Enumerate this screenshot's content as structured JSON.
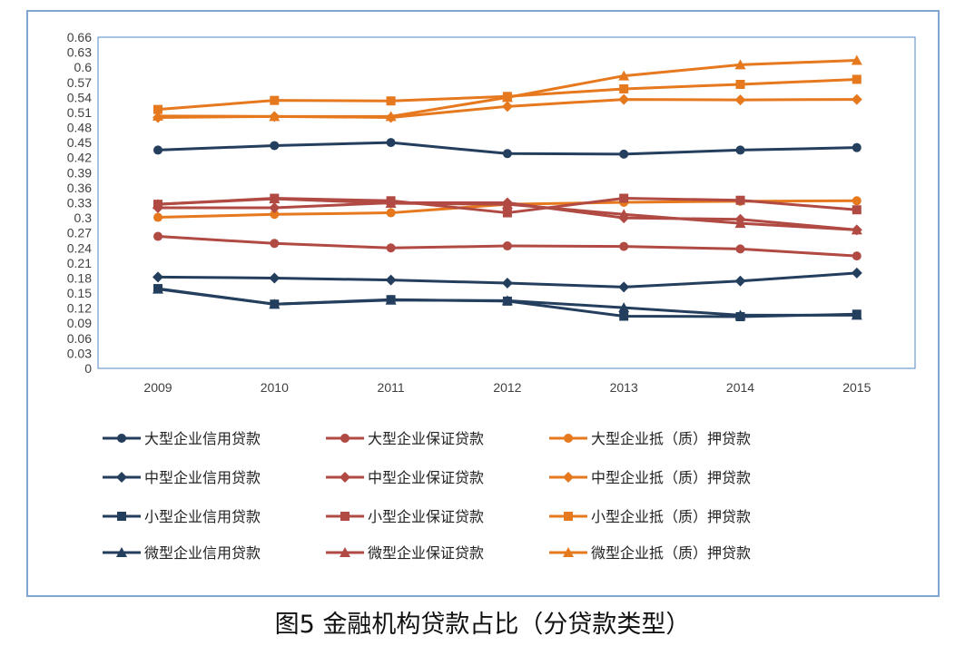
{
  "caption": "图5 金融机构贷款占比（分贷款类型）",
  "colors": {
    "dark_blue": "#243e5e",
    "red": "#b04a43",
    "orange": "#e6781e",
    "axis": "#d9d9d9",
    "plot_border": "#4f86c6"
  },
  "chart_data": {
    "type": "line",
    "title": "",
    "xlabel": "",
    "ylabel": "",
    "categories": [
      "2009",
      "2010",
      "2011",
      "2012",
      "2013",
      "2014",
      "2015"
    ],
    "ylim": [
      0,
      0.66
    ],
    "yticks": [
      "0.66",
      "0.63",
      "0.6",
      "0.57",
      "0.54",
      "0.51",
      "0.48",
      "0.45",
      "0.42",
      "0.39",
      "0.36",
      "0.33",
      "0.3",
      "0.27",
      "0.24",
      "0.21",
      "0.18",
      "0.15",
      "0.12",
      "0.09",
      "0.06",
      "0.03",
      "0"
    ],
    "grid": false,
    "legend_position": "bottom",
    "series": [
      {
        "name": "大型企业信用贷款",
        "color": "#243e5e",
        "marker": "circle",
        "values": [
          0.435,
          0.444,
          0.45,
          0.428,
          0.427,
          0.435,
          0.44
        ]
      },
      {
        "name": "大型企业保证贷款",
        "color": "#b04a43",
        "marker": "circle",
        "values": [
          0.263,
          0.249,
          0.24,
          0.244,
          0.243,
          0.238,
          0.224
        ]
      },
      {
        "name": "大型企业抵（质）押贷款",
        "color": "#e6781e",
        "marker": "circle",
        "values": [
          0.301,
          0.307,
          0.31,
          0.327,
          0.331,
          0.333,
          0.334
        ]
      },
      {
        "name": "中型企业信用贷款",
        "color": "#243e5e",
        "marker": "diamond",
        "values": [
          0.182,
          0.18,
          0.176,
          0.17,
          0.162,
          0.174,
          0.19
        ]
      },
      {
        "name": "中型企业保证贷款",
        "color": "#b04a43",
        "marker": "diamond",
        "values": [
          0.32,
          0.32,
          0.33,
          0.33,
          0.3,
          0.297,
          0.276
        ]
      },
      {
        "name": "中型企业抵（质）押贷款",
        "color": "#e6781e",
        "marker": "diamond",
        "values": [
          0.5,
          0.502,
          0.5,
          0.522,
          0.536,
          0.535,
          0.536
        ]
      },
      {
        "name": "小型企业信用贷款",
        "color": "#243e5e",
        "marker": "square",
        "values": [
          0.159,
          0.128,
          0.137,
          0.134,
          0.104,
          0.103,
          0.108
        ]
      },
      {
        "name": "小型企业保证贷款",
        "color": "#b04a43",
        "marker": "square",
        "values": [
          0.327,
          0.339,
          0.334,
          0.31,
          0.339,
          0.335,
          0.316
        ]
      },
      {
        "name": "小型企业抵（质）押贷款",
        "color": "#e6781e",
        "marker": "square",
        "values": [
          0.516,
          0.534,
          0.533,
          0.542,
          0.557,
          0.566,
          0.576
        ]
      },
      {
        "name": "微型企业信用贷款",
        "color": "#243e5e",
        "marker": "triangle",
        "values": [
          0.158,
          0.128,
          0.136,
          0.135,
          0.121,
          0.106,
          0.106
        ]
      },
      {
        "name": "微型企业保证贷款",
        "color": "#b04a43",
        "marker": "triangle",
        "values": [
          0.327,
          0.338,
          0.329,
          0.327,
          0.307,
          0.289,
          0.276
        ]
      },
      {
        "name": "微型企业抵（质）押贷款",
        "color": "#e6781e",
        "marker": "triangle",
        "values": [
          0.503,
          0.502,
          0.502,
          0.54,
          0.583,
          0.605,
          0.614
        ]
      }
    ]
  }
}
